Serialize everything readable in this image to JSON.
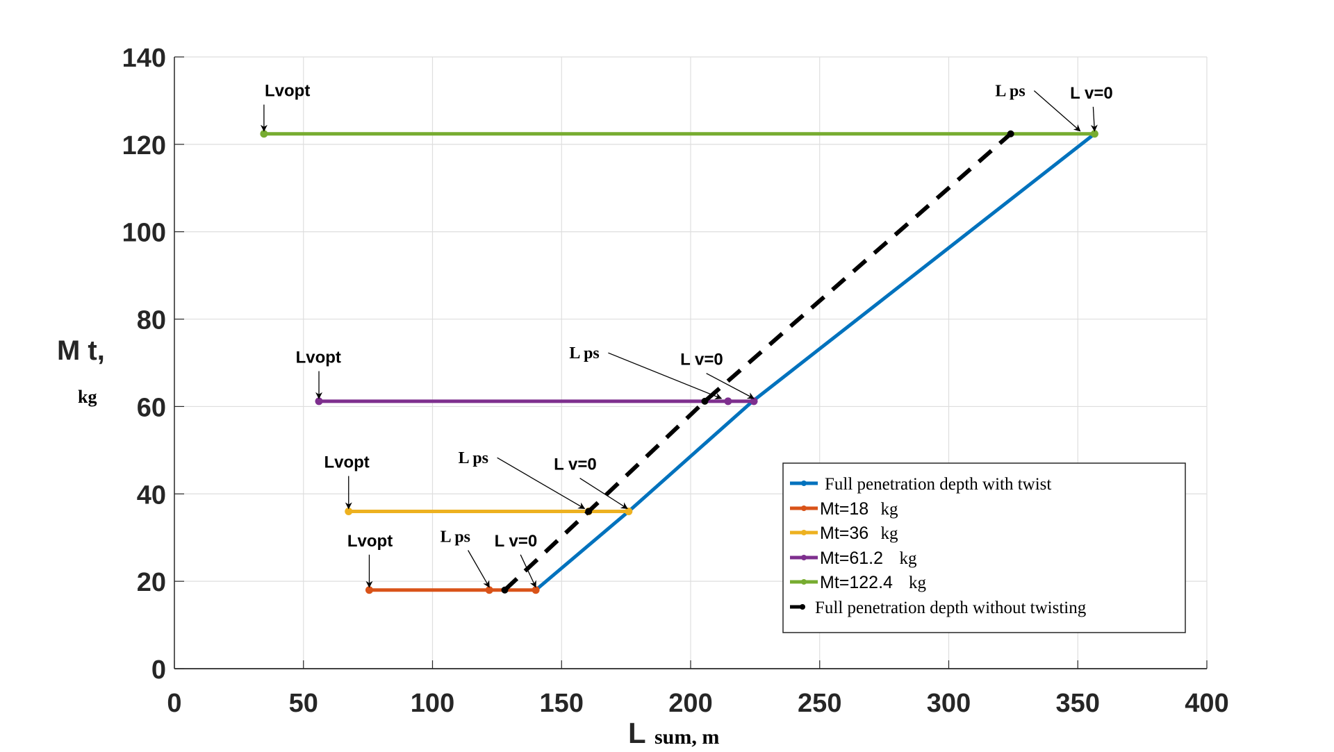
{
  "chart_data": {
    "type": "line",
    "title": "",
    "xlabel": {
      "main": "L",
      "sub": "sum, m"
    },
    "ylabel": {
      "main": "M t,",
      "sub": "kg"
    },
    "xlim": [
      0,
      400
    ],
    "ylim": [
      0,
      140
    ],
    "xticks": [
      0,
      50,
      100,
      150,
      200,
      250,
      300,
      350,
      400
    ],
    "yticks": [
      0,
      20,
      40,
      60,
      80,
      100,
      120,
      140
    ],
    "grid": true,
    "legend_position": "bottom-right",
    "series": [
      {
        "name": "Full penetration depth with twist",
        "color": "#0072BD",
        "style": "solid",
        "x": [
          140,
          176,
          224,
          356.5
        ],
        "y": [
          18,
          36,
          61.2,
          122.4
        ]
      },
      {
        "name": "Mt=18",
        "unit": "kg",
        "color": "#D95319",
        "style": "solid",
        "x": [
          75.5,
          122,
          140
        ],
        "y": [
          18,
          18,
          18
        ]
      },
      {
        "name": "Mt=36",
        "unit": "kg",
        "color": "#EDB120",
        "style": "solid",
        "x": [
          67.5,
          160.5,
          176
        ],
        "y": [
          36,
          36,
          36
        ]
      },
      {
        "name": "Mt=61.2",
        "unit": "kg",
        "color": "#7E2F8E",
        "style": "solid",
        "x": [
          56,
          214.5,
          224.5
        ],
        "y": [
          61.2,
          61.2,
          61.2
        ]
      },
      {
        "name": "Mt=122.4",
        "unit": "kg",
        "color": "#77AC30",
        "style": "solid",
        "x": [
          34.7,
          356.5
        ],
        "y": [
          122.4,
          122.4
        ]
      },
      {
        "name": "Full penetration depth without twisting",
        "color": "#000000",
        "style": "dashed",
        "x": [
          128,
          160.5,
          205.5,
          324
        ],
        "y": [
          18,
          36,
          61.2,
          122.4
        ]
      }
    ],
    "annotations": [
      {
        "text": "Lvopt",
        "font": "sans",
        "target": [
          34.7,
          122.4
        ],
        "from": "above",
        "tx": 35,
        "ty": 131
      },
      {
        "text": "L ps",
        "font": "serif",
        "target": [
          352,
          122.4
        ],
        "from": "left",
        "tx": 318,
        "ty": 131
      },
      {
        "text": "L v=0",
        "font": "sans",
        "target": [
          356.5,
          122.4
        ],
        "from": "above",
        "tx": 347,
        "ty": 130.5
      },
      {
        "text": "Lvopt",
        "font": "sans",
        "target": [
          56,
          61.2
        ],
        "from": "above",
        "tx": 47,
        "ty": 70
      },
      {
        "text": "L ps",
        "font": "serif",
        "target": [
          213,
          61.2
        ],
        "from": "left",
        "tx": 153,
        "ty": 71
      },
      {
        "text": "L v=0",
        "font": "sans",
        "target": [
          224.5,
          61.2
        ],
        "from": "above",
        "tx": 196,
        "ty": 69.5
      },
      {
        "text": "Lvopt",
        "font": "sans",
        "target": [
          67.5,
          36
        ],
        "from": "above",
        "tx": 58,
        "ty": 46
      },
      {
        "text": "L ps",
        "font": "serif",
        "target": [
          160,
          36
        ],
        "from": "left",
        "tx": 110,
        "ty": 47
      },
      {
        "text": "L v=0",
        "font": "sans",
        "target": [
          175.5,
          36
        ],
        "from": "above",
        "tx": 147,
        "ty": 45.5
      },
      {
        "text": "Lvopt",
        "font": "sans",
        "target": [
          75.5,
          18
        ],
        "from": "above",
        "tx": 67,
        "ty": 28
      },
      {
        "text": "L ps",
        "font": "serif",
        "target": [
          122,
          18
        ],
        "from": "above",
        "tx": 103,
        "ty": 29
      },
      {
        "text": "L v=0",
        "font": "sans",
        "target": [
          140,
          18
        ],
        "from": "above",
        "tx": 124,
        "ty": 28
      }
    ]
  }
}
